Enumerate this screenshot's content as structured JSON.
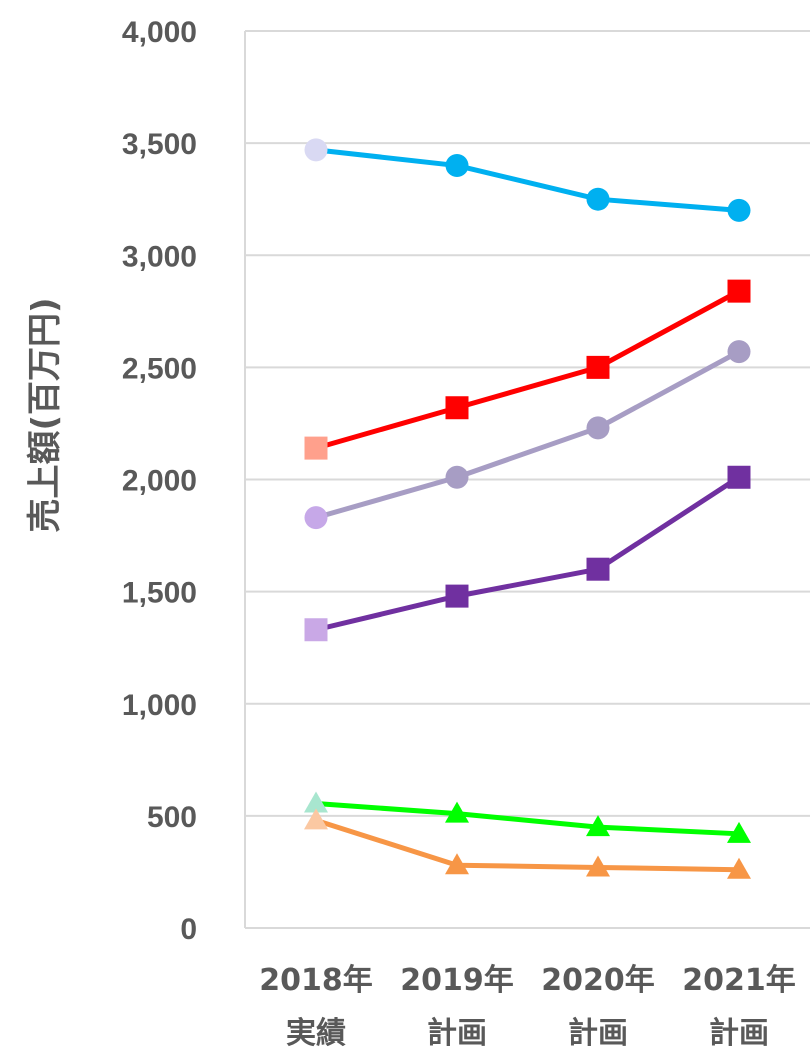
{
  "chart_data": {
    "type": "line",
    "ylabel": "売上額(百万円)",
    "ylim": [
      0,
      4000
    ],
    "y_ticks": [
      0,
      500,
      1000,
      1500,
      2000,
      2500,
      3000,
      3500,
      4000
    ],
    "y_tick_labels": [
      "0",
      "500",
      "1,000",
      "1,500",
      "2,000",
      "2,500",
      "3,000",
      "3,500",
      "4,000"
    ],
    "categories": [
      {
        "line1": "2018年",
        "line2": "実績"
      },
      {
        "line1": "2019年",
        "line2": "計画"
      },
      {
        "line1": "2020年",
        "line2": "計画"
      },
      {
        "line1": "2021年",
        "line2": "計画"
      }
    ],
    "grid": true,
    "legend": "none",
    "series": [
      {
        "values": [
          3470,
          3400,
          3250,
          3200
        ],
        "color": "#00B0F0",
        "first_color": "#D9D9F3",
        "marker": "circle"
      },
      {
        "values": [
          2140,
          2320,
          2500,
          2840
        ],
        "color": "#FF0000",
        "first_color": "#FFA08C",
        "marker": "square"
      },
      {
        "values": [
          1830,
          2010,
          2230,
          2570
        ],
        "color": "#A79DC4",
        "first_color": "#C6A8E8",
        "marker": "circle"
      },
      {
        "values": [
          1330,
          1480,
          1600,
          2010
        ],
        "color": "#7030A0",
        "first_color": "#C9A8E6",
        "marker": "square"
      },
      {
        "values": [
          555,
          510,
          450,
          420
        ],
        "color": "#00FF00",
        "first_color": "#A8E6CF",
        "marker": "triangle"
      },
      {
        "values": [
          480,
          280,
          270,
          260
        ],
        "color": "#F79646",
        "first_color": "#FBC8A2",
        "marker": "triangle"
      }
    ]
  }
}
